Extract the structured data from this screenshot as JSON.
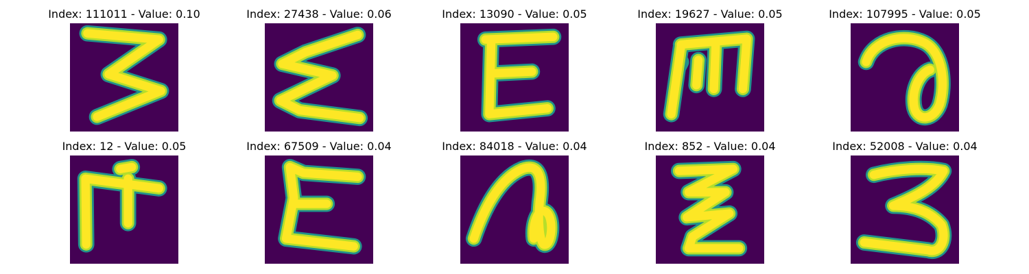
{
  "colors": {
    "background": "#440154",
    "stroke_core": "#fde725",
    "stroke_mid": "#b5de2b",
    "stroke_edge": "#21918c"
  },
  "images": [
    {
      "title": "Index: 111011 - Value: 0.10",
      "glyph": "three-shaped-character"
    },
    {
      "title": "Index: 27438 - Value: 0.06",
      "glyph": "sigma-like-character"
    },
    {
      "title": "Index: 13090 - Value: 0.05",
      "glyph": "E-shaped-character"
    },
    {
      "title": "Index: 19627 - Value: 0.05",
      "glyph": "m-shaped-character"
    },
    {
      "title": "Index: 107995 - Value: 0.05",
      "glyph": "loop-shaped-character"
    },
    {
      "title": "Index: 12 - Value: 0.05",
      "glyph": "m-shaped-character"
    },
    {
      "title": "Index: 67509 - Value: 0.04",
      "glyph": "E-shaped-character"
    },
    {
      "title": "Index: 84018 - Value: 0.04",
      "glyph": "loop-shaped-character"
    },
    {
      "title": "Index: 852 - Value: 0.04",
      "glyph": "z-shaped-character"
    },
    {
      "title": "Index: 52008 - Value: 0.04",
      "glyph": "three-shaped-character"
    }
  ]
}
